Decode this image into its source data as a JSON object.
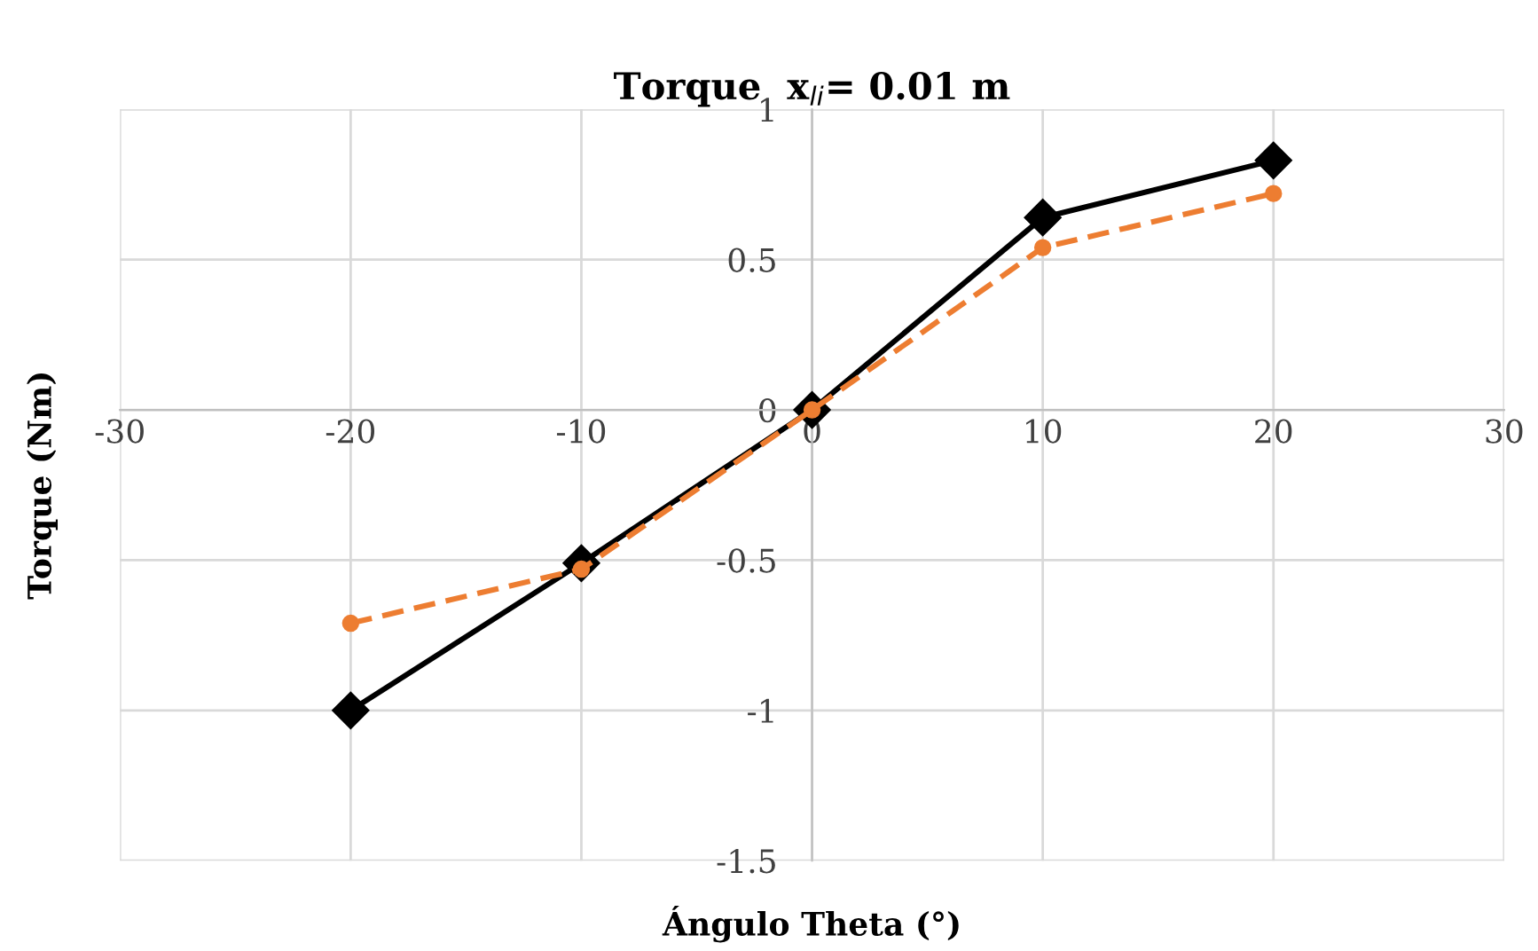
{
  "chart_data": {
    "type": "line",
    "title": "Torque  x$_{li}$= 0.01 m",
    "xlabel": "Ángulo Theta (°)",
    "ylabel": "Torque (Nm)",
    "x": [
      -20,
      -10,
      0,
      10,
      20
    ],
    "series": [
      {
        "color": "#000000",
        "values": [
          -1.0,
          -0.51,
          0,
          0.64,
          0.83
        ],
        "marker": "diamond",
        "line_style": "solid"
      },
      {
        "color": "#ed7d31",
        "values": [
          -0.71,
          -0.53,
          0,
          0.54,
          0.72
        ],
        "marker": "circle",
        "line_style": "dashed"
      }
    ],
    "xlim": [
      -30,
      30
    ],
    "xticks": [
      -30,
      -20,
      -10,
      0,
      10,
      20,
      30
    ],
    "ylim": [
      -1.5,
      1
    ],
    "yticks": [
      -1.5,
      -1,
      -0.5,
      0,
      0.5,
      1
    ],
    "grid": true,
    "legend": false
  }
}
